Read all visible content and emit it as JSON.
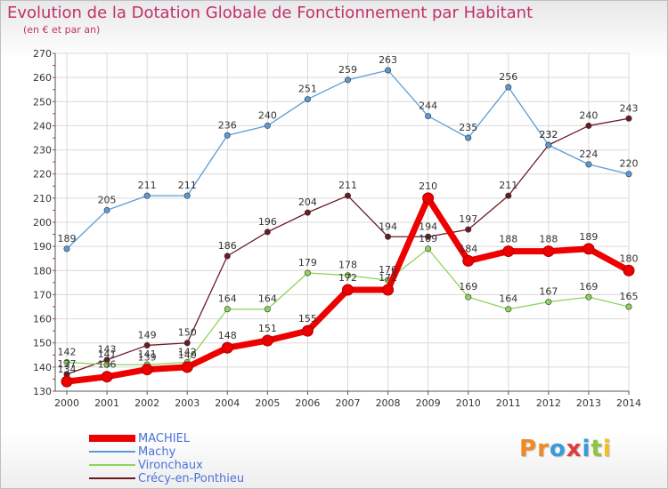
{
  "header": {
    "title": "Evolution de la Dotation Globale de Fonctionnement par Habitant",
    "subtitle": "(en € et par an)"
  },
  "logo": {
    "text": "Proxiti",
    "colors": [
      "#f08a24",
      "#f08a24",
      "#3a9ad9",
      "#e03a3a",
      "#3a9ad9",
      "#8cc63f",
      "#f0c020"
    ]
  },
  "chart_data": {
    "type": "line",
    "title": "Evolution de la Dotation Globale de Fonctionnement par Habitant",
    "subtitle": "(en € et par an)",
    "x": [
      "2000",
      "2001",
      "2002",
      "2003",
      "2004",
      "2005",
      "2006",
      "2007",
      "2008",
      "2009",
      "2010",
      "2011",
      "2012",
      "2013",
      "2014"
    ],
    "ylim": [
      130,
      270
    ],
    "yticks": [
      130,
      140,
      150,
      160,
      170,
      180,
      190,
      200,
      210,
      220,
      230,
      240,
      250,
      260,
      270
    ],
    "grid": true,
    "legend": "bottom-left",
    "series": [
      {
        "name": "Crécy-en-Ponthieu",
        "color": "#6b1a24",
        "values": [
          137,
          143,
          149,
          150,
          186,
          196,
          204,
          211,
          194,
          194,
          197,
          211,
          232,
          240,
          243
        ]
      },
      {
        "name": "Vironchaux",
        "color": "#8ed45a",
        "values": [
          142,
          141,
          141,
          142,
          164,
          164,
          179,
          178,
          176,
          189,
          169,
          164,
          167,
          169,
          165
        ]
      },
      {
        "name": "Machy",
        "color": "#5b9bd5",
        "values": [
          189,
          205,
          211,
          211,
          236,
          240,
          251,
          259,
          263,
          244,
          235,
          256,
          232,
          224,
          220
        ]
      },
      {
        "name": "MACHIEL",
        "color": "#ee0000",
        "values": [
          134,
          136,
          139,
          140,
          148,
          151,
          155,
          172,
          172,
          210,
          184,
          188,
          188,
          189,
          180
        ]
      }
    ],
    "legend_order": [
      "MACHIEL",
      "Machy",
      "Vironchaux",
      "Crécy-en-Ponthieu"
    ]
  }
}
